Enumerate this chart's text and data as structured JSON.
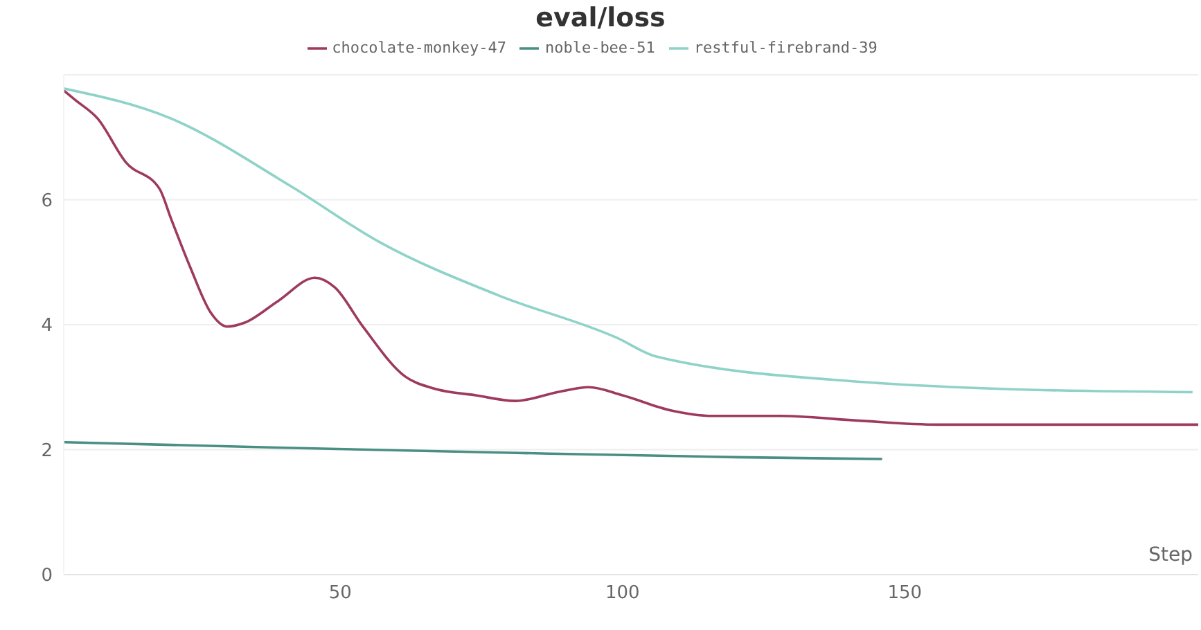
{
  "chart_data": {
    "type": "line",
    "title": "eval/loss",
    "xlabel": "Step",
    "xlim": [
      1,
      202
    ],
    "xticks": [
      50,
      100,
      150
    ],
    "ylim": [
      0,
      8
    ],
    "yticks": [
      0,
      2,
      4,
      6
    ],
    "grid": "y",
    "legend": "top",
    "marker": "none",
    "line_style": "solid",
    "series": [
      {
        "name": "noble-bee-51",
        "color": "#4a8f84",
        "x": [
          1,
          40,
          80,
          120,
          146
        ],
        "values": [
          2.12,
          2.03,
          1.95,
          1.88,
          1.85
        ]
      },
      {
        "name": "chocolate-monkey-47",
        "color": "#9e3a5f",
        "x": [
          1,
          3,
          7,
          12,
          18,
          20,
          23.5,
          27,
          30,
          33,
          39,
          45.5,
          49,
          54,
          61.5,
          66.5,
          74,
          81,
          89,
          94,
          100,
          108.5,
          116,
          128,
          141,
          156,
          170,
          202
        ],
        "values": [
          7.75,
          7.6,
          7.3,
          6.6,
          6.17,
          5.7,
          4.9,
          4.2,
          3.97,
          4.03,
          4.38,
          4.75,
          4.6,
          3.97,
          3.17,
          2.98,
          2.87,
          2.78,
          2.93,
          3.0,
          2.87,
          2.63,
          2.54,
          2.54,
          2.47,
          2.4,
          2.4,
          2.4
        ]
      },
      {
        "name": "restful-firebrand-39",
        "color": "#8fd3c8",
        "x": [
          1,
          20,
          41,
          57,
          78,
          99,
          106,
          143,
          168,
          201
        ],
        "values": [
          7.78,
          7.3,
          6.23,
          5.32,
          4.47,
          3.79,
          3.49,
          3.08,
          2.97,
          2.92
        ]
      }
    ]
  }
}
